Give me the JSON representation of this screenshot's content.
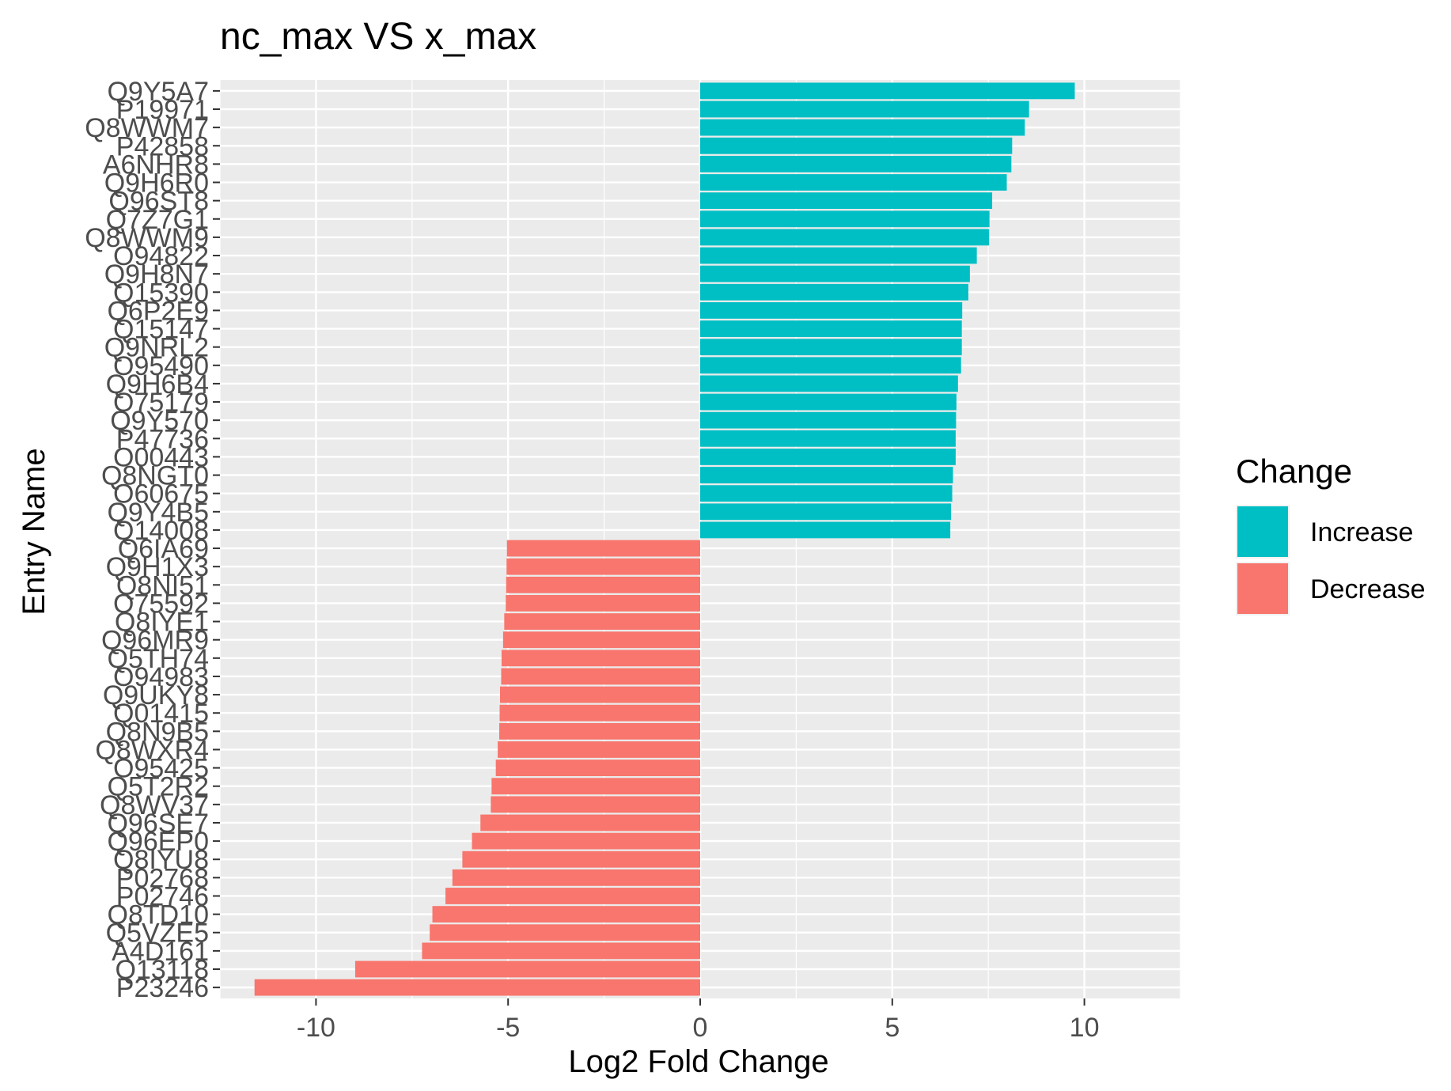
{
  "chart_data": {
    "type": "bar",
    "orientation": "horizontal",
    "title": "nc_max VS x_max",
    "xlabel": "Log2 Fold Change",
    "ylabel": "Entry Name",
    "xlim": [
      -12.5,
      12.5
    ],
    "xticks": [
      -10,
      -5,
      0,
      5,
      10
    ],
    "xtick_labels": [
      "-10",
      "-5",
      "0",
      "5",
      "10"
    ],
    "grid": true,
    "legend": {
      "title": "Change",
      "position": "right",
      "items": [
        {
          "label": "Increase",
          "color": "#00BFC4"
        },
        {
          "label": "Decrease",
          "color": "#F8766D"
        }
      ]
    },
    "colors": {
      "Increase": "#00BFC4",
      "Decrease": "#F8766D",
      "panel": "#EBEBEB",
      "grid": "#FFFFFF"
    },
    "categories": [
      "Q9Y5A7",
      "P19971",
      "Q8WWM7",
      "P42858",
      "A6NHR8",
      "Q9H6R0",
      "Q96ST8",
      "Q7Z7G1",
      "Q8WWM9",
      "O94822",
      "Q9H8N7",
      "Q15390",
      "Q6P2E9",
      "Q15147",
      "Q9NRL2",
      "O95490",
      "Q9H6B4",
      "O75179",
      "Q9Y570",
      "P47736",
      "O00443",
      "Q8NGT0",
      "O60675",
      "Q9Y4B5",
      "Q14008",
      "Q6IA69",
      "Q9H1X3",
      "Q8NI51",
      "O75592",
      "Q8IYE1",
      "Q96MR9",
      "Q5TH74",
      "O94983",
      "Q9UKY8",
      "Q01415",
      "Q8N9B5",
      "Q8WXR4",
      "O95425",
      "Q5T2R2",
      "Q8WV37",
      "Q96SE7",
      "Q96EP0",
      "Q8IYU8",
      "P02768",
      "P02746",
      "Q8TD10",
      "Q5VZE5",
      "A4D161",
      "Q13118",
      "P23246"
    ],
    "values": [
      9.75,
      8.56,
      8.45,
      8.12,
      8.1,
      7.98,
      7.6,
      7.53,
      7.52,
      7.2,
      7.02,
      6.98,
      6.82,
      6.81,
      6.81,
      6.79,
      6.71,
      6.67,
      6.66,
      6.65,
      6.65,
      6.58,
      6.56,
      6.53,
      6.51,
      -5.03,
      -5.04,
      -5.05,
      -5.06,
      -5.1,
      -5.13,
      -5.17,
      -5.18,
      -5.21,
      -5.22,
      -5.23,
      -5.27,
      -5.32,
      -5.43,
      -5.45,
      -5.72,
      -5.94,
      -6.19,
      -6.45,
      -6.63,
      -6.97,
      -7.04,
      -7.24,
      -8.98,
      -11.6
    ],
    "change": [
      "Increase",
      "Increase",
      "Increase",
      "Increase",
      "Increase",
      "Increase",
      "Increase",
      "Increase",
      "Increase",
      "Increase",
      "Increase",
      "Increase",
      "Increase",
      "Increase",
      "Increase",
      "Increase",
      "Increase",
      "Increase",
      "Increase",
      "Increase",
      "Increase",
      "Increase",
      "Increase",
      "Increase",
      "Increase",
      "Decrease",
      "Decrease",
      "Decrease",
      "Decrease",
      "Decrease",
      "Decrease",
      "Decrease",
      "Decrease",
      "Decrease",
      "Decrease",
      "Decrease",
      "Decrease",
      "Decrease",
      "Decrease",
      "Decrease",
      "Decrease",
      "Decrease",
      "Decrease",
      "Decrease",
      "Decrease",
      "Decrease",
      "Decrease",
      "Decrease",
      "Decrease",
      "Decrease"
    ]
  }
}
